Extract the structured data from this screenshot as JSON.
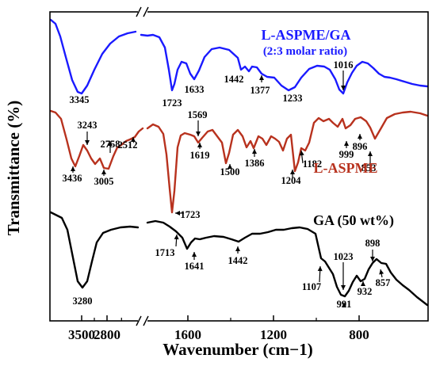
{
  "chart_data": {
    "type": "line",
    "title": "",
    "xlabel": "Wavenumber (cm−1)",
    "ylabel": "Transmittance (%)",
    "x_reversed": true,
    "x_axis_break": true,
    "x_ticks": [
      "3500",
      "2800",
      "1600",
      "1200",
      "800"
    ],
    "grid": false,
    "y_tick_labels": false,
    "series": [
      {
        "name": "L-ASPME/GA",
        "name_line2": "(2:3 molar ratio)",
        "color": "#1a1aff",
        "peak_labels": [
          "3345",
          "1723",
          "1633",
          "1442",
          "1377",
          "1233",
          "1016"
        ]
      },
      {
        "name": "L-ASPME",
        "color": "#b8321e",
        "peak_labels": [
          "3243",
          "3436",
          "3005",
          "2758",
          "2512",
          "1569",
          "1619",
          "1500",
          "1386",
          "1204",
          "1182",
          "999",
          "896",
          "853",
          "1723"
        ]
      },
      {
        "name": "GA (50 wt%)",
        "color": "#000000",
        "peak_labels": [
          "3280",
          "1713",
          "1641",
          "1442",
          "1107",
          "1023",
          "898",
          "991",
          "932",
          "857"
        ]
      }
    ]
  }
}
